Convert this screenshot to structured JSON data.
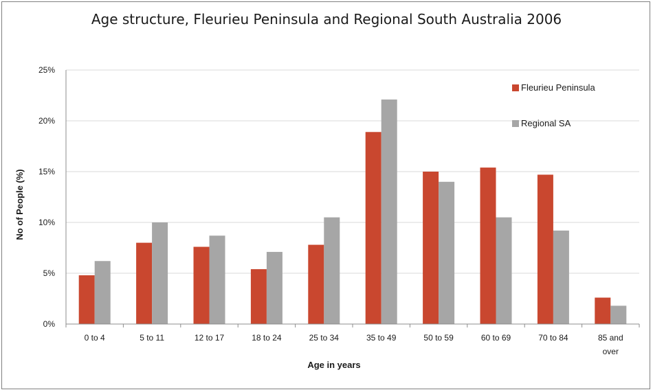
{
  "chart_data": {
    "type": "bar",
    "title": "Age structure, Fleurieu Peninsula and Regional South Australia 2006",
    "xlabel": "Age in years",
    "ylabel": "No of People (%)",
    "ylim": [
      0,
      25
    ],
    "yticks": [
      "0%",
      "5%",
      "10%",
      "15%",
      "20%",
      "25%"
    ],
    "grid": true,
    "legend_position": "top-right",
    "categories": [
      "0 to 4",
      "5 to 11",
      "12 to 17",
      "18 to 24",
      "25 to 34",
      "35 to 49",
      "50 to 59",
      "60 to 69",
      "70 to 84",
      "85 and over"
    ],
    "series": [
      {
        "name": "Fleurieu Peninsula",
        "color": "#c9472f",
        "values": [
          4.8,
          8.0,
          7.6,
          5.4,
          7.8,
          18.9,
          15.0,
          15.4,
          14.7,
          2.6
        ]
      },
      {
        "name": "Regional SA",
        "color": "#a6a6a6",
        "values": [
          6.2,
          10.0,
          8.7,
          7.1,
          10.5,
          22.1,
          14.0,
          10.5,
          9.2,
          1.8
        ]
      }
    ]
  }
}
